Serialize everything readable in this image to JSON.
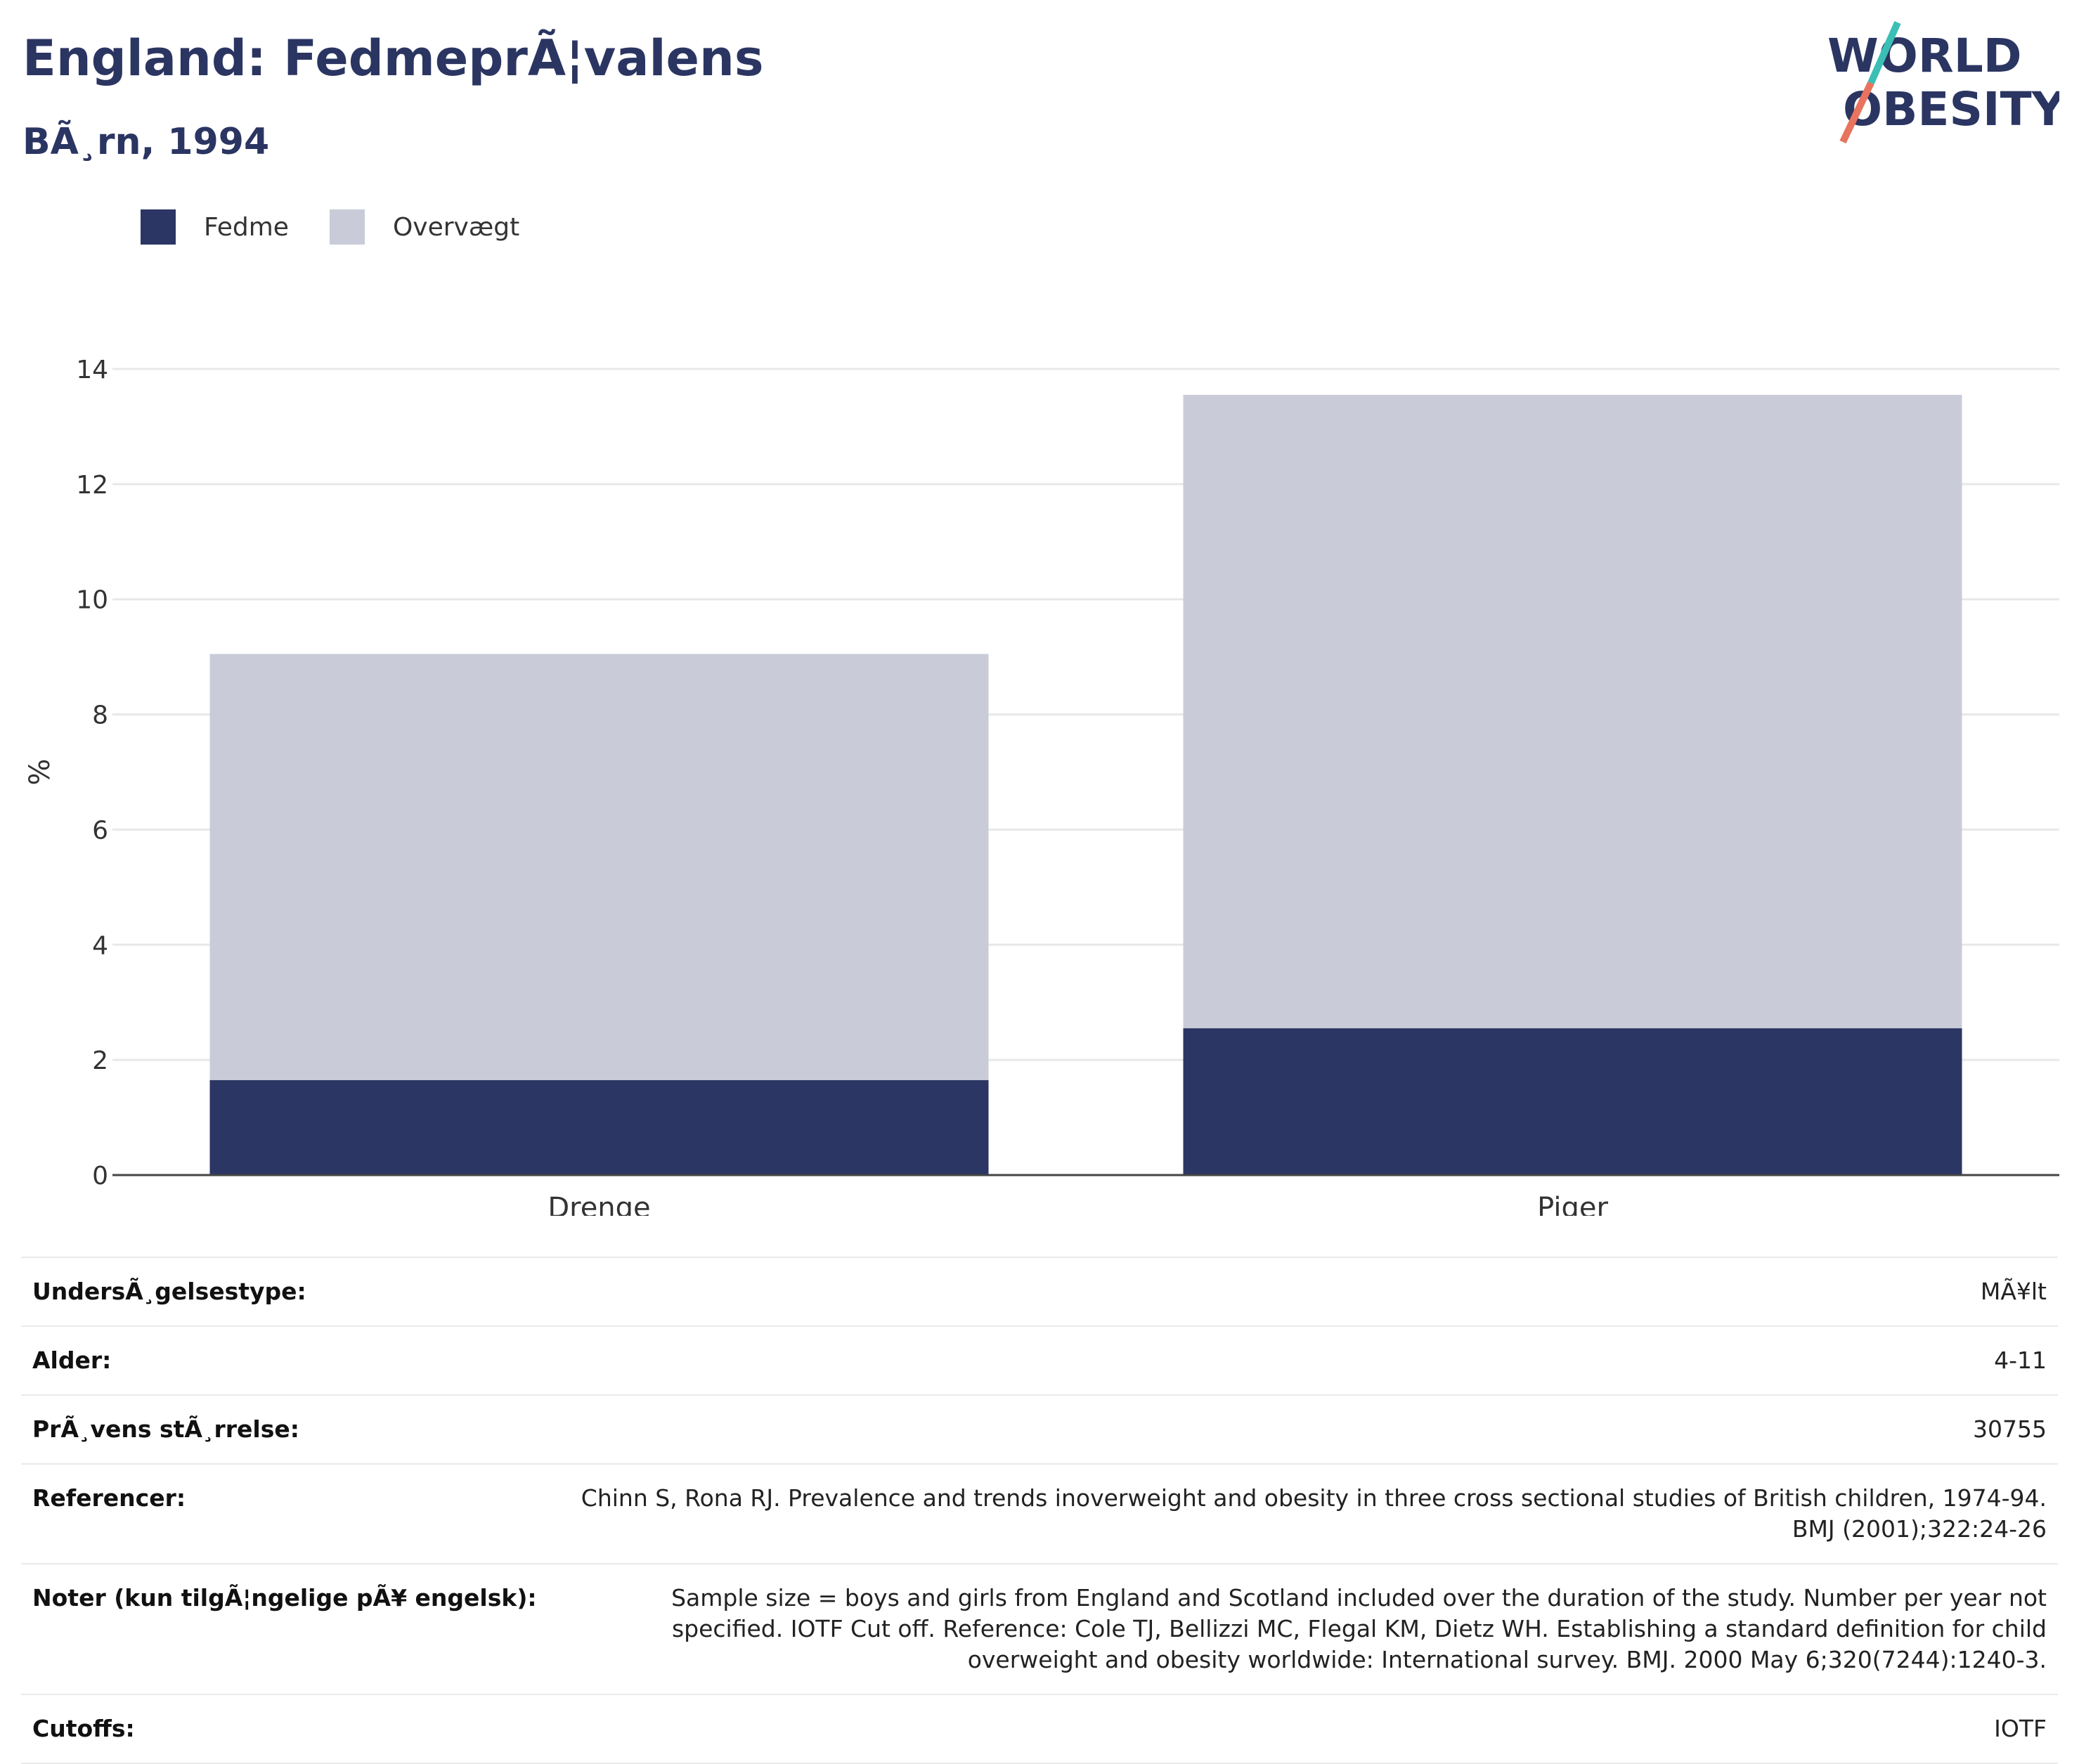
{
  "header": {
    "title": "England: FedmeprÃ¦valens",
    "subtitle": "BÃ¸rn, 1994",
    "logo_line1": "WORLD",
    "logo_line2": "OBESITY"
  },
  "legend": {
    "items": [
      {
        "label": "Fedme",
        "color": "#2b3664"
      },
      {
        "label": "Overvægt",
        "color": "#c9ccd8"
      }
    ]
  },
  "chart_data": {
    "type": "bar",
    "stacked": true,
    "categories": [
      "Drenge",
      "Piger"
    ],
    "series": [
      {
        "name": "Fedme",
        "values": [
          1.65,
          2.55
        ],
        "color": "#2b3664"
      },
      {
        "name": "Overvægt",
        "values": [
          7.4,
          11.0
        ],
        "color": "#c9ccd8"
      }
    ],
    "ylabel": "%",
    "xlabel": "",
    "ylim": [
      0,
      14
    ],
    "yticks": [
      0,
      2,
      4,
      6,
      8,
      10,
      12,
      14
    ],
    "grid": true,
    "legend_position": "top-left"
  },
  "info": {
    "rows": [
      {
        "label": "UndersÃ¸gelsestype:",
        "value": "MÃ¥lt"
      },
      {
        "label": "Alder:",
        "value": "4-11"
      },
      {
        "label": "PrÃ¸vens stÃ¸rrelse:",
        "value": "30755"
      },
      {
        "label": "Referencer:",
        "value": "Chinn S, Rona RJ. Prevalence and trends inoverweight and obesity in three cross sectional studies of British children, 1974-94. BMJ (2001);322:24-26"
      },
      {
        "label": "Noter (kun tilgÃ¦ngelige pÃ¥ engelsk):",
        "value": "Sample size = boys and girls from England and Scotland included over the duration of the study. Number per year not specified. IOTF Cut off. Reference: Cole TJ, Bellizzi MC, Flegal KM, Dietz WH. Establishing a standard definition for child overweight and obesity worldwide: International survey. BMJ. 2000 May 6;320(7244):1240-3."
      },
      {
        "label": "Cutoffs:",
        "value": "IOTF"
      }
    ]
  }
}
